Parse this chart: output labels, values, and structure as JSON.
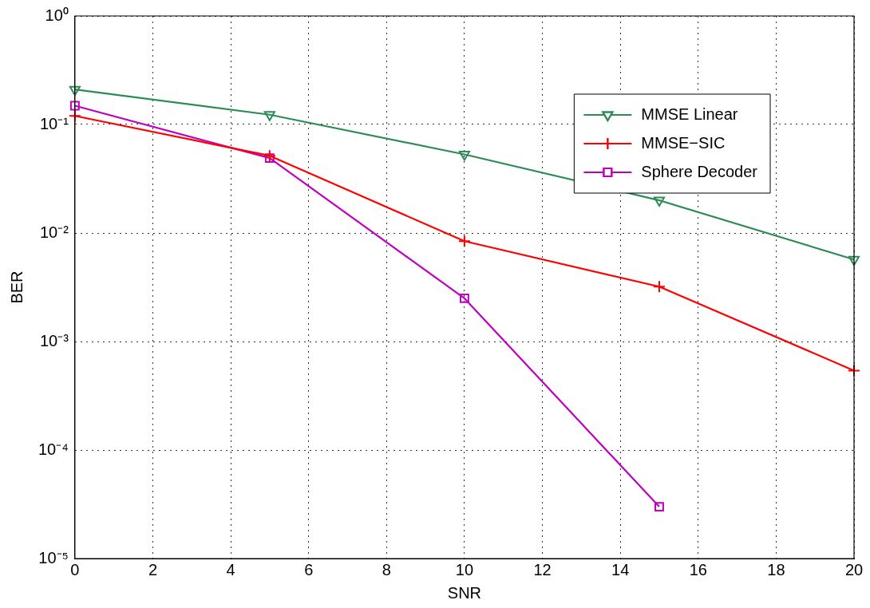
{
  "chart_data": {
    "type": "line",
    "xlabel": "SNR",
    "ylabel": "BER",
    "x": [
      0,
      5,
      10,
      15,
      20
    ],
    "series": [
      {
        "name": "MMSE Linear",
        "color": "#2e8b57",
        "marker": "triangle",
        "values": [
          0.21,
          0.123,
          0.053,
          0.02,
          0.0057
        ]
      },
      {
        "name": "MMSE−SIC",
        "color": "#ff0000",
        "marker": "cross",
        "values": [
          0.12,
          0.0515,
          0.0084,
          0.0032,
          0.00054
        ]
      },
      {
        "name": "Sphere Decoder",
        "color": "#bf00bf",
        "marker": "square",
        "values": [
          0.149,
          0.049,
          0.0025,
          3e-05,
          null
        ]
      }
    ],
    "xlim": [
      0,
      20
    ],
    "xticks": [
      0,
      2,
      4,
      6,
      8,
      10,
      12,
      14,
      16,
      18,
      20
    ],
    "ylim": [
      1e-05,
      1
    ],
    "yticks": [
      {
        "value": 1e-05,
        "label": "10⁻⁵"
      },
      {
        "value": 0.0001,
        "label": "10⁻⁴"
      },
      {
        "value": 0.001,
        "label": "10⁻³"
      },
      {
        "value": 0.01,
        "label": "10⁻²"
      },
      {
        "value": 0.1,
        "label": "10⁻¹"
      },
      {
        "value": 1,
        "label": "10⁰"
      }
    ],
    "log": "y",
    "grid": true,
    "legend": "top right",
    "line_style": "solid"
  }
}
